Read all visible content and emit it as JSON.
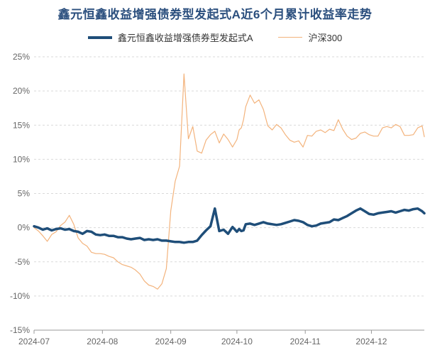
{
  "chart_data": {
    "type": "line",
    "title": "鑫元恒鑫收益增强债券型发起式A近6个月累计收益率走势",
    "legend_position": "top",
    "grid": true,
    "y_ticks": [
      "25%",
      "20%",
      "15%",
      "10%",
      "5%",
      "0%",
      "-5%",
      "-10%",
      "-15%"
    ],
    "y_tick_values": [
      25,
      20,
      15,
      10,
      5,
      0,
      -5,
      -10,
      -15
    ],
    "ylim": [
      -15,
      25
    ],
    "x_ticks": [
      "2024-07",
      "2024-08",
      "2024-09",
      "2024-10",
      "2024-11",
      "2024-12"
    ],
    "x_tick_days": [
      0,
      31,
      62,
      92,
      123,
      153
    ],
    "x_range_days": [
      0,
      177
    ],
    "series": [
      {
        "name": "鑫元恒鑫收益增强债券型发起式A",
        "color": "#1f4e79",
        "width": 3.5,
        "x": [
          0,
          2,
          4,
          6,
          8,
          10,
          12,
          14,
          16,
          18,
          20,
          22,
          24,
          26,
          28,
          30,
          32,
          34,
          36,
          38,
          40,
          42,
          44,
          46,
          48,
          50,
          52,
          54,
          56,
          58,
          60,
          62,
          64,
          66,
          68,
          70,
          72,
          74,
          76,
          78,
          80,
          82,
          84,
          86,
          88,
          90,
          92,
          93,
          94,
          95,
          96,
          98,
          100,
          102,
          104,
          106,
          108,
          110,
          112,
          114,
          116,
          118,
          120,
          122,
          124,
          126,
          128,
          130,
          132,
          134,
          136,
          138,
          140,
          142,
          144,
          146,
          148,
          150,
          152,
          154,
          156,
          158,
          160,
          162,
          164,
          166,
          168,
          170,
          172,
          174,
          176,
          177
        ],
        "values": [
          0.2,
          0.0,
          -0.3,
          -0.1,
          -0.4,
          -0.2,
          -0.1,
          -0.3,
          -0.2,
          -0.5,
          -0.6,
          -0.9,
          -0.5,
          -0.6,
          -1.0,
          -1.1,
          -1.0,
          -1.2,
          -1.2,
          -1.4,
          -1.4,
          -1.6,
          -1.7,
          -1.6,
          -1.5,
          -1.8,
          -1.7,
          -1.8,
          -1.7,
          -1.9,
          -1.9,
          -2.0,
          -2.1,
          -2.1,
          -2.2,
          -2.1,
          -2.1,
          -1.9,
          -1.1,
          -0.4,
          0.2,
          2.8,
          -0.5,
          -0.3,
          -0.9,
          0.1,
          -0.6,
          -0.2,
          -0.5,
          -0.4,
          0.5,
          0.6,
          0.4,
          0.6,
          0.8,
          0.6,
          0.5,
          0.4,
          0.5,
          0.7,
          0.9,
          1.1,
          1.0,
          0.8,
          0.4,
          0.2,
          0.3,
          0.6,
          0.7,
          0.8,
          1.2,
          1.1,
          1.4,
          1.7,
          2.1,
          2.5,
          2.8,
          2.4,
          2.0,
          1.9,
          2.1,
          2.2,
          2.3,
          2.4,
          2.2,
          2.4,
          2.6,
          2.5,
          2.7,
          2.8,
          2.4,
          2.1
        ]
      },
      {
        "name": "沪深300",
        "color": "#f3b37c",
        "width": 1.2,
        "x": [
          0,
          2,
          4,
          6,
          8,
          10,
          12,
          14,
          16,
          18,
          20,
          22,
          24,
          26,
          28,
          30,
          32,
          34,
          36,
          38,
          40,
          42,
          44,
          46,
          48,
          50,
          52,
          54,
          56,
          58,
          60,
          62,
          64,
          66,
          68,
          70,
          72,
          74,
          76,
          78,
          80,
          82,
          84,
          86,
          88,
          90,
          92,
          93,
          94,
          95,
          96,
          98,
          100,
          102,
          104,
          106,
          108,
          110,
          112,
          114,
          116,
          118,
          120,
          122,
          124,
          126,
          128,
          130,
          132,
          134,
          136,
          138,
          140,
          142,
          144,
          146,
          148,
          150,
          152,
          154,
          156,
          158,
          160,
          162,
          164,
          166,
          168,
          170,
          172,
          174,
          176,
          177
        ],
        "values": [
          0.0,
          -0.5,
          -1.2,
          -2.0,
          -1.0,
          -0.6,
          0.3,
          0.8,
          1.8,
          0.5,
          -1.5,
          -2.3,
          -2.7,
          -3.6,
          -3.8,
          -3.8,
          -3.9,
          -4.2,
          -4.4,
          -5.0,
          -5.4,
          -5.6,
          -5.8,
          -6.2,
          -6.8,
          -7.8,
          -8.4,
          -8.6,
          -9.0,
          -8.2,
          -6.0,
          2.5,
          6.8,
          9.0,
          22.5,
          13.0,
          14.8,
          11.2,
          10.9,
          12.8,
          13.6,
          14.1,
          12.4,
          13.7,
          12.9,
          11.8,
          12.9,
          14.3,
          14.6,
          15.8,
          17.7,
          19.4,
          18.2,
          18.7,
          17.3,
          14.9,
          14.3,
          15.1,
          14.6,
          13.6,
          12.8,
          12.5,
          12.7,
          11.8,
          13.5,
          13.4,
          14.1,
          14.3,
          13.9,
          14.4,
          14.2,
          15.8,
          14.4,
          13.4,
          12.9,
          13.1,
          13.8,
          14.0,
          13.6,
          13.4,
          13.4,
          14.6,
          14.8,
          14.6,
          15.1,
          14.8,
          13.5,
          13.5,
          13.6,
          14.6,
          14.9,
          13.3
        ]
      }
    ]
  }
}
